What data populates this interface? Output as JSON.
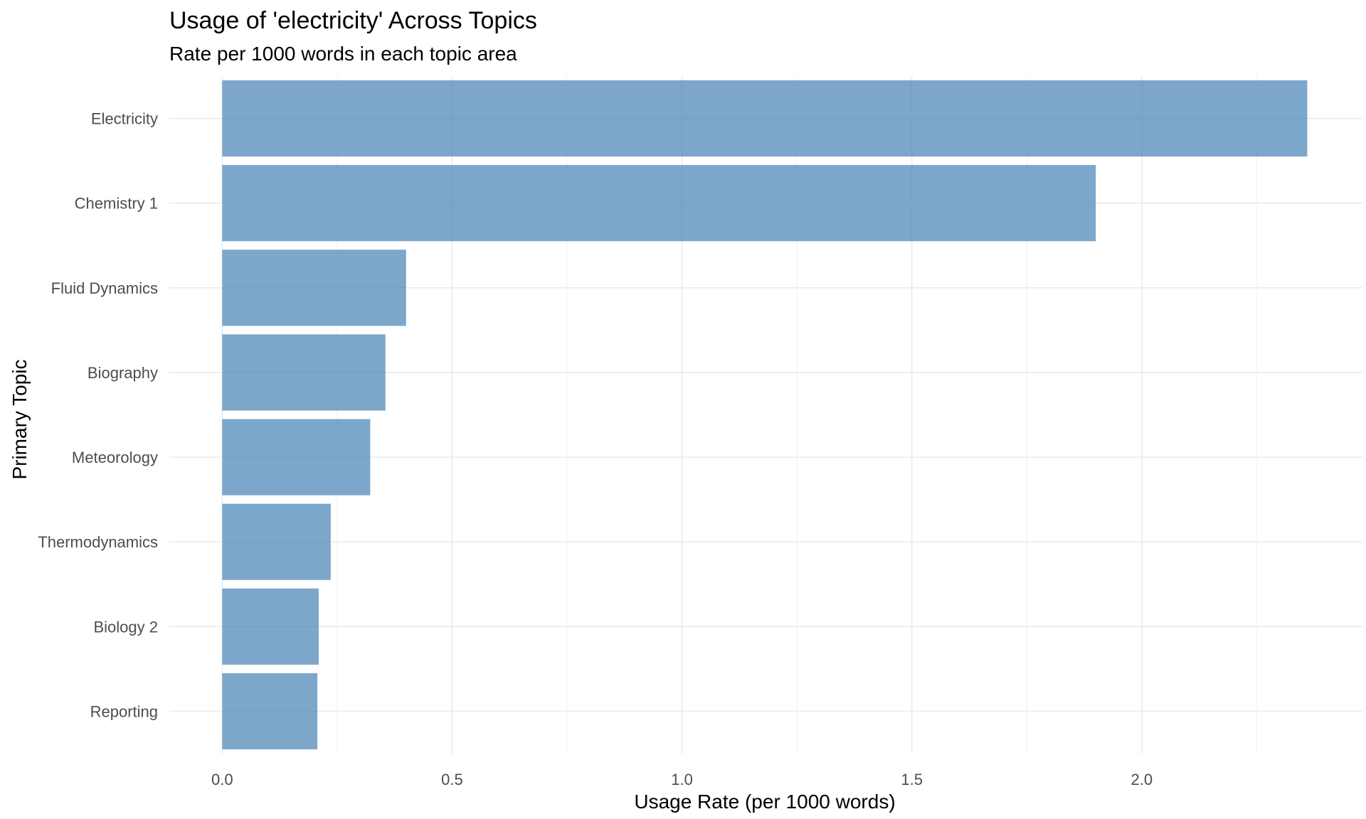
{
  "chart_data": {
    "type": "bar",
    "orientation": "horizontal",
    "title": "Usage of 'electricity' Across Topics",
    "subtitle": "Rate per 1000 words in each topic area",
    "xlabel": "Usage Rate (per 1000 words)",
    "ylabel": "Primary Topic",
    "categories": [
      "Electricity",
      "Chemistry 1",
      "Fluid Dynamics",
      "Biography",
      "Meteorology",
      "Thermodynamics",
      "Biology 2",
      "Reporting"
    ],
    "values": [
      2.36,
      1.9,
      0.4,
      0.355,
      0.322,
      0.236,
      0.21,
      0.207
    ],
    "xlim": [
      -0.115,
      2.48
    ],
    "x_ticks": [
      0.0,
      0.5,
      1.0,
      1.5,
      2.0
    ],
    "x_tick_labels": [
      "0.0",
      "0.5",
      "1.0",
      "1.5",
      "2.0"
    ],
    "x_minor_ticks": [
      0.25,
      0.75,
      1.25,
      1.75,
      2.25
    ],
    "grid": true,
    "legend": "none",
    "bar_color": "#4682B4",
    "bar_opacity": 0.7
  }
}
